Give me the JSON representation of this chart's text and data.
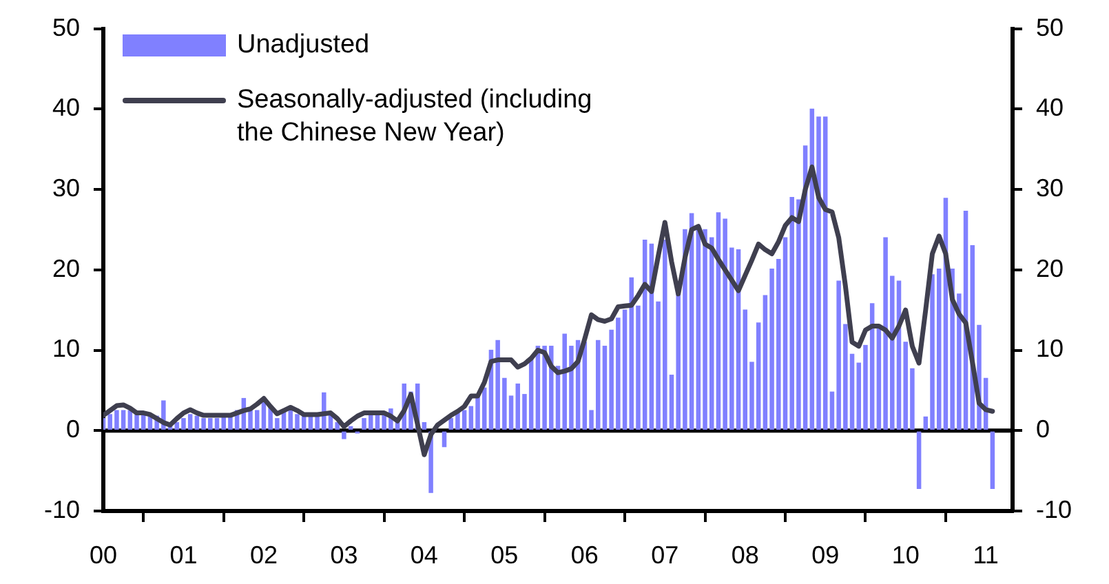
{
  "chart_data": {
    "type": "bar",
    "x": [
      "2000-01",
      "2000-02",
      "2000-03",
      "2000-04",
      "2000-05",
      "2000-06",
      "2000-07",
      "2000-08",
      "2000-09",
      "2000-10",
      "2000-11",
      "2000-12",
      "2001-01",
      "2001-02",
      "2001-03",
      "2001-04",
      "2001-05",
      "2001-06",
      "2001-07",
      "2001-08",
      "2001-09",
      "2001-10",
      "2001-11",
      "2001-12",
      "2002-01",
      "2002-02",
      "2002-03",
      "2002-04",
      "2002-05",
      "2002-06",
      "2002-07",
      "2002-08",
      "2002-09",
      "2002-10",
      "2002-11",
      "2002-12",
      "2003-01",
      "2003-02",
      "2003-03",
      "2003-04",
      "2003-05",
      "2003-06",
      "2003-07",
      "2003-08",
      "2003-09",
      "2003-10",
      "2003-11",
      "2003-12",
      "2004-01",
      "2004-02",
      "2004-03",
      "2004-04",
      "2004-05",
      "2004-06",
      "2004-07",
      "2004-08",
      "2004-09",
      "2004-10",
      "2004-11",
      "2004-12",
      "2005-01",
      "2005-02",
      "2005-03",
      "2005-04",
      "2005-05",
      "2005-06",
      "2005-07",
      "2005-08",
      "2005-09",
      "2005-10",
      "2005-11",
      "2005-12",
      "2006-01",
      "2006-02",
      "2006-03",
      "2006-04",
      "2006-05",
      "2006-06",
      "2006-07",
      "2006-08",
      "2006-09",
      "2006-10",
      "2006-11",
      "2006-12",
      "2007-01",
      "2007-02",
      "2007-03",
      "2007-04",
      "2007-05",
      "2007-06",
      "2007-07",
      "2007-08",
      "2007-09",
      "2007-10",
      "2007-11",
      "2007-12",
      "2008-01",
      "2008-02",
      "2008-03",
      "2008-04",
      "2008-05",
      "2008-06",
      "2008-07",
      "2008-08",
      "2008-09",
      "2008-10",
      "2008-11",
      "2008-12",
      "2009-01",
      "2009-02",
      "2009-03",
      "2009-04",
      "2009-05",
      "2009-06",
      "2009-07",
      "2009-08",
      "2009-09",
      "2009-10",
      "2009-11",
      "2009-12",
      "2010-01",
      "2010-02",
      "2010-03",
      "2010-04",
      "2010-05",
      "2010-06",
      "2010-07",
      "2010-08",
      "2010-09",
      "2010-10",
      "2010-11",
      "2010-12",
      "2011-01",
      "2011-02"
    ],
    "series": [
      {
        "name": "Unadjusted",
        "color": "#8080ff",
        "values": [
          1.5,
          2,
          2.5,
          2.5,
          2.5,
          2,
          2,
          2,
          1.8,
          3.7,
          0.5,
          1,
          1.5,
          2,
          1.8,
          1.5,
          1.5,
          1.5,
          1.8,
          2,
          2.5,
          4,
          2.8,
          2.5,
          3.5,
          3,
          1.5,
          2.5,
          2.8,
          2,
          2,
          1.8,
          2,
          4.7,
          2,
          1,
          -1,
          0.5,
          -0.3,
          1.5,
          2,
          2,
          2,
          2.7,
          1.5,
          5.8,
          4.8,
          5.8,
          1,
          -7.7,
          null,
          -2,
          1.5,
          2.2,
          2.5,
          3,
          4.5,
          5.3,
          10,
          11.2,
          6.5,
          4.3,
          5.8,
          4.5,
          9.1,
          10.5,
          10.5,
          10.5,
          8,
          12,
          10.5,
          11.2,
          11,
          2.5,
          11.2,
          10.5,
          12.5,
          14,
          15,
          19,
          15.5,
          23.7,
          23.2,
          16,
          23.7,
          6.9,
          17.2,
          25,
          27,
          24.9,
          25,
          24,
          27.1,
          26.3,
          22.7,
          22.5,
          15,
          8.5,
          13.4,
          16.8,
          20.1,
          21.3,
          24,
          29,
          28.7,
          35.4,
          40,
          39,
          39,
          4.8,
          18.6,
          13.2,
          9.5,
          8.4,
          10.6,
          15.8,
          12.9,
          24,
          19.2,
          18.6,
          11,
          7.7,
          -7.2,
          1.7,
          19.4,
          20.1,
          28.9,
          20.1,
          17,
          27.3,
          23,
          13.1,
          6.5,
          -7.2
        ]
      },
      {
        "name": "Seasonally-adjusted (including the Chinese New Year)",
        "type": "line",
        "color": "#3f3f4f",
        "values": [
          1.9,
          2.5,
          3.1,
          3.2,
          2.8,
          2.2,
          2.2,
          2,
          1.5,
          1,
          0.7,
          1.5,
          2.2,
          2.6,
          2.2,
          1.9,
          1.9,
          1.9,
          1.9,
          1.9,
          2.2,
          2.5,
          2.7,
          3.3,
          4,
          3,
          2.1,
          2.5,
          2.9,
          2.5,
          2,
          2,
          2,
          2.1,
          2.2,
          1.5,
          0.5,
          1.2,
          1.8,
          2.2,
          2.2,
          2.2,
          2.2,
          1.8,
          1.2,
          2.5,
          4.5,
          0.8,
          -3,
          -0.5,
          0.7,
          1.3,
          1.9,
          2.4,
          3,
          4.3,
          4.3,
          6,
          8.6,
          8.8,
          8.8,
          8.8,
          7.9,
          8.3,
          9,
          10,
          9.7,
          8,
          7.2,
          7.4,
          7.7,
          8.6,
          11.4,
          14.4,
          13.8,
          13.6,
          13.9,
          15.4,
          15.5,
          15.6,
          16.8,
          18.2,
          17.3,
          21.7,
          25.9,
          21,
          17,
          21.5,
          25,
          25.4,
          23.2,
          22.7,
          21.3,
          20,
          18.7,
          17.4,
          19.3,
          21.2,
          23.2,
          22.5,
          22,
          23.5,
          25.5,
          26.5,
          26,
          30,
          32.8,
          29,
          27.5,
          27.2,
          24,
          18,
          11,
          10.5,
          12.5,
          13,
          13,
          12.5,
          11.5,
          13,
          15,
          10.5,
          8.4,
          15,
          22,
          24.2,
          22,
          16.3,
          14.5,
          13.4,
          8.5,
          3.4,
          2.6,
          2.4
        ]
      }
    ],
    "xlim": [
      "2000-01",
      "2011-05"
    ],
    "xticks": [
      {
        "value": "2000",
        "label": "00"
      },
      {
        "value": "2001",
        "label": "01"
      },
      {
        "value": "2002",
        "label": "02"
      },
      {
        "value": "2003",
        "label": "03"
      },
      {
        "value": "2004",
        "label": "04"
      },
      {
        "value": "2005",
        "label": "05"
      },
      {
        "value": "2006",
        "label": "06"
      },
      {
        "value": "2007",
        "label": "07"
      },
      {
        "value": "2008",
        "label": "08"
      },
      {
        "value": "2009",
        "label": "09"
      },
      {
        "value": "2010",
        "label": "10"
      },
      {
        "value": "2011",
        "label": "11"
      }
    ],
    "ylim": [
      -10,
      50
    ],
    "yticks": [
      -10,
      0,
      10,
      20,
      30,
      40,
      50
    ],
    "y2lim": [
      -10,
      50
    ],
    "y2ticks": [
      -10,
      0,
      10,
      20,
      30,
      40,
      50
    ],
    "ref_lines": [
      {
        "axis": "y",
        "value": 0,
        "color": "#000000"
      }
    ],
    "grid": false,
    "legend": "top left",
    "marker": "none",
    "line_style": "solid"
  }
}
